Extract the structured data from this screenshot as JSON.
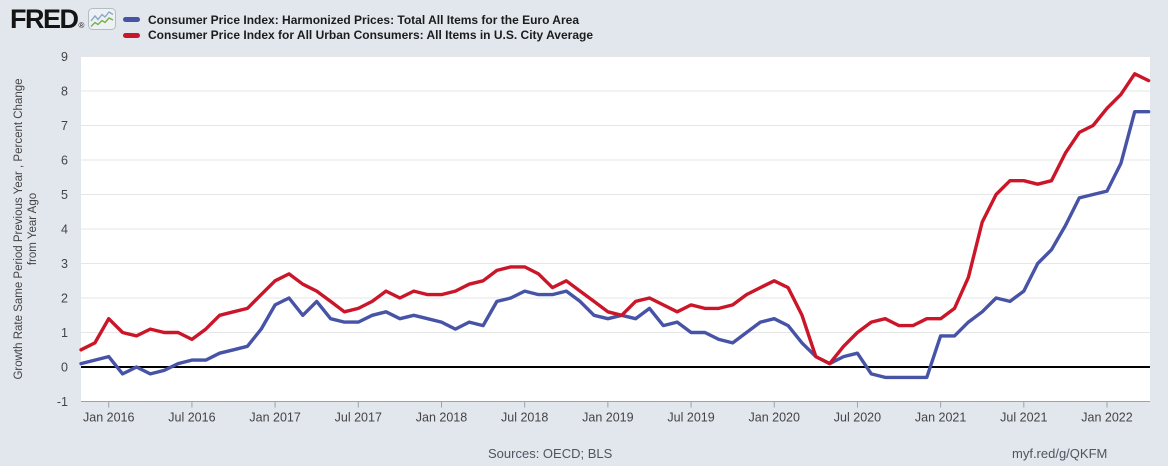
{
  "header": {
    "logo_text": "FRED",
    "registered_mark": "®"
  },
  "footer": {
    "sources": "Sources: OECD; BLS",
    "url": "myf.red/g/QKFM"
  },
  "icons": {
    "logo_sparkline": "fred-sparkline-chart-icon"
  },
  "colors": {
    "background": "#e2e7ee",
    "plot_background": "#ffffff",
    "gridline": "#e6e6e6",
    "axis_line": "#9aa3ad",
    "zero_line": "#000000",
    "tick_text": "#444444"
  },
  "chart_data": {
    "type": "line",
    "x_unit": "month",
    "grid": true,
    "legend_position": "top-left",
    "ylim": [
      -1,
      9
    ],
    "yticks": [
      -1,
      0,
      1,
      2,
      3,
      4,
      5,
      6,
      7,
      8,
      9
    ],
    "ylabel_lines": [
      "Growth Rate Same Period Previous Year , Percent Change",
      "from Year Ago"
    ],
    "xticks": [
      {
        "label": "Jan 2016",
        "index": 2
      },
      {
        "label": "Jul 2016",
        "index": 8
      },
      {
        "label": "Jan 2017",
        "index": 14
      },
      {
        "label": "Jul 2017",
        "index": 20
      },
      {
        "label": "Jan 2018",
        "index": 26
      },
      {
        "label": "Jul 2018",
        "index": 32
      },
      {
        "label": "Jan 2019",
        "index": 38
      },
      {
        "label": "Jul 2019",
        "index": 44
      },
      {
        "label": "Jan 2020",
        "index": 50
      },
      {
        "label": "Jul 2020",
        "index": 56
      },
      {
        "label": "Jan 2021",
        "index": 62
      },
      {
        "label": "Jul 2021",
        "index": 68
      },
      {
        "label": "Jan 2022",
        "index": 74
      }
    ],
    "months": [
      "2015-11",
      "2015-12",
      "2016-01",
      "2016-02",
      "2016-03",
      "2016-04",
      "2016-05",
      "2016-06",
      "2016-07",
      "2016-08",
      "2016-09",
      "2016-10",
      "2016-11",
      "2016-12",
      "2017-01",
      "2017-02",
      "2017-03",
      "2017-04",
      "2017-05",
      "2017-06",
      "2017-07",
      "2017-08",
      "2017-09",
      "2017-10",
      "2017-11",
      "2017-12",
      "2018-01",
      "2018-02",
      "2018-03",
      "2018-04",
      "2018-05",
      "2018-06",
      "2018-07",
      "2018-08",
      "2018-09",
      "2018-10",
      "2018-11",
      "2018-12",
      "2019-01",
      "2019-02",
      "2019-03",
      "2019-04",
      "2019-05",
      "2019-06",
      "2019-07",
      "2019-08",
      "2019-09",
      "2019-10",
      "2019-11",
      "2019-12",
      "2020-01",
      "2020-02",
      "2020-03",
      "2020-04",
      "2020-05",
      "2020-06",
      "2020-07",
      "2020-08",
      "2020-09",
      "2020-10",
      "2020-11",
      "2020-12",
      "2021-01",
      "2021-02",
      "2021-03",
      "2021-04",
      "2021-05",
      "2021-06",
      "2021-07",
      "2021-08",
      "2021-09",
      "2021-10",
      "2021-11",
      "2021-12",
      "2022-01",
      "2022-02",
      "2022-03",
      "2022-04"
    ],
    "series": [
      {
        "name": "Consumer Price Index: Harmonized Prices: Total All Items for the Euro Area",
        "color": "#4653a6",
        "values": [
          0.1,
          0.2,
          0.3,
          -0.2,
          0.0,
          -0.2,
          -0.1,
          0.1,
          0.2,
          0.2,
          0.4,
          0.5,
          0.6,
          1.1,
          1.8,
          2.0,
          1.5,
          1.9,
          1.4,
          1.3,
          1.3,
          1.5,
          1.6,
          1.4,
          1.5,
          1.4,
          1.3,
          1.1,
          1.3,
          1.2,
          1.9,
          2.0,
          2.2,
          2.1,
          2.1,
          2.2,
          1.9,
          1.5,
          1.4,
          1.5,
          1.4,
          1.7,
          1.2,
          1.3,
          1.0,
          1.0,
          0.8,
          0.7,
          1.0,
          1.3,
          1.4,
          1.2,
          0.7,
          0.3,
          0.1,
          0.3,
          0.4,
          -0.2,
          -0.3,
          -0.3,
          -0.3,
          -0.3,
          0.9,
          0.9,
          1.3,
          1.6,
          2.0,
          1.9,
          2.2,
          3.0,
          3.4,
          4.1,
          4.9,
          5.0,
          5.1,
          5.9,
          7.4,
          7.4
        ]
      },
      {
        "name": "Consumer Price Index for All Urban Consumers: All Items in U.S. City Average",
        "color": "#cb1528",
        "values": [
          0.5,
          0.7,
          1.4,
          1.0,
          0.9,
          1.1,
          1.0,
          1.0,
          0.8,
          1.1,
          1.5,
          1.6,
          1.7,
          2.1,
          2.5,
          2.7,
          2.4,
          2.2,
          1.9,
          1.6,
          1.7,
          1.9,
          2.2,
          2.0,
          2.2,
          2.1,
          2.1,
          2.2,
          2.4,
          2.5,
          2.8,
          2.9,
          2.9,
          2.7,
          2.3,
          2.5,
          2.2,
          1.9,
          1.6,
          1.5,
          1.9,
          2.0,
          1.8,
          1.6,
          1.8,
          1.7,
          1.7,
          1.8,
          2.1,
          2.3,
          2.5,
          2.3,
          1.5,
          0.3,
          0.1,
          0.6,
          1.0,
          1.3,
          1.4,
          1.2,
          1.2,
          1.4,
          1.4,
          1.7,
          2.6,
          4.2,
          5.0,
          5.4,
          5.4,
          5.3,
          5.4,
          6.2,
          6.8,
          7.0,
          7.5,
          7.9,
          8.5,
          8.3
        ]
      }
    ]
  }
}
